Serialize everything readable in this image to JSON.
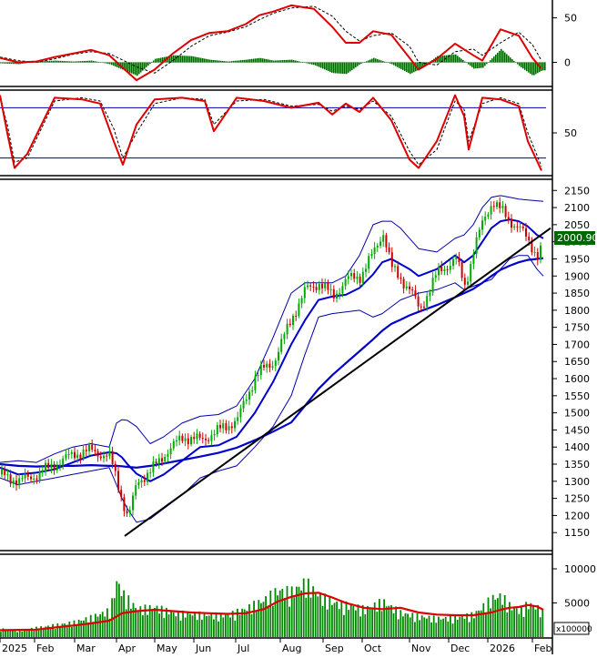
{
  "colors": {
    "background": "#ffffff",
    "frame": "#000000",
    "macd_line": "#dd0000",
    "macd_signal": "#000000",
    "macd_hist": "#006600",
    "stoch_k": "#dd0000",
    "stoch_d": "#000000",
    "stoch_ref": "#0000aa",
    "bollinger": "#0000aa",
    "ma_blue": "#0000cc",
    "trendline": "#000000",
    "candle_up": "#00aa00",
    "candle_down": "#cc0000",
    "volume_bar": "#008800",
    "volume_ma": "#dd0000",
    "price_tag_bg": "#006600",
    "price_tag_fg": "#ffffff"
  },
  "chart_data": [
    {
      "type": "line",
      "panel": "macd",
      "yticks": [
        50,
        0
      ],
      "ylim": [
        -25,
        68
      ],
      "x": [
        0,
        20,
        40,
        60,
        80,
        100,
        120,
        150,
        170,
        190,
        210,
        230,
        250,
        270,
        285,
        300,
        320,
        345,
        365,
        380,
        395,
        410,
        430,
        450,
        460,
        480,
        500,
        520,
        530,
        550,
        570,
        585,
        595
      ],
      "series": [
        {
          "values": [
            5,
            0,
            1,
            6,
            10,
            14,
            8,
            -20,
            -8,
            10,
            25,
            33,
            35,
            43,
            53,
            57,
            64,
            60,
            40,
            22,
            22,
            35,
            31,
            5,
            -8,
            4,
            21,
            8,
            2,
            37,
            30,
            5,
            -7
          ]
        },
        {
          "values": [
            6,
            2,
            0,
            4,
            9,
            12,
            10,
            -5,
            -12,
            2,
            18,
            30,
            34,
            40,
            48,
            55,
            61,
            63,
            52,
            35,
            24,
            30,
            33,
            18,
            0,
            -3,
            12,
            15,
            8,
            22,
            34,
            20,
            2
          ]
        }
      ],
      "histogram": [
        -1,
        -2,
        1,
        2,
        1,
        2,
        -2,
        -15,
        4,
        8,
        7,
        3,
        1,
        3,
        5,
        2,
        3,
        -3,
        -12,
        -13,
        -2,
        5,
        -2,
        -13,
        -8,
        7,
        9,
        -7,
        -6,
        15,
        -4,
        -15,
        -9
      ]
    },
    {
      "type": "line",
      "panel": "stochastic",
      "yticks": [
        50
      ],
      "ylim": [
        0,
        100
      ],
      "reference_lines": [
        80,
        20
      ],
      "x": [
        0,
        8,
        16,
        30,
        60,
        90,
        110,
        125,
        135,
        150,
        170,
        200,
        225,
        235,
        260,
        290,
        320,
        350,
        365,
        380,
        395,
        410,
        430,
        450,
        460,
        480,
        500,
        510,
        515,
        530,
        550,
        570,
        580,
        595
      ],
      "series": [
        {
          "values": [
            95,
            50,
            8,
            25,
            92,
            90,
            85,
            40,
            12,
            60,
            90,
            92,
            88,
            52,
            92,
            88,
            80,
            86,
            72,
            85,
            75,
            92,
            65,
            18,
            8,
            40,
            95,
            70,
            30,
            92,
            90,
            82,
            40,
            5
          ]
        },
        {
          "values": [
            92,
            60,
            15,
            20,
            88,
            92,
            88,
            55,
            20,
            50,
            85,
            92,
            90,
            60,
            88,
            90,
            82,
            84,
            76,
            82,
            78,
            88,
            70,
            28,
            12,
            30,
            88,
            78,
            40,
            85,
            92,
            85,
            50,
            10
          ]
        }
      ]
    },
    {
      "type": "candlestick",
      "panel": "price",
      "yticks": [
        2150,
        2100,
        2050,
        2000,
        1950,
        1900,
        1850,
        1800,
        1750,
        1700,
        1650,
        1600,
        1550,
        1500,
        1450,
        1400,
        1350,
        1300,
        1250,
        1200,
        1150
      ],
      "ylim": [
        1100,
        2180
      ],
      "last_price_label": "2000.90",
      "x": [
        0,
        20,
        40,
        60,
        80,
        100,
        120,
        128,
        134,
        140,
        150,
        165,
        180,
        200,
        220,
        240,
        260,
        280,
        300,
        320,
        335,
        350,
        365,
        380,
        395,
        410,
        420,
        430,
        440,
        450,
        460,
        480,
        500,
        510,
        520,
        530,
        540,
        550,
        560,
        570,
        580,
        590,
        597
      ],
      "close": [
        1320,
        1300,
        1320,
        1350,
        1380,
        1390,
        1370,
        1300,
        1240,
        1190,
        1300,
        1330,
        1380,
        1430,
        1420,
        1450,
        1480,
        1610,
        1650,
        1780,
        1860,
        1880,
        1840,
        1890,
        1900,
        1970,
        2030,
        1920,
        1890,
        1860,
        1800,
        1910,
        1950,
        1870,
        1980,
        2060,
        2120,
        2090,
        2060,
        2040,
        2000,
        1960,
        2001
      ],
      "ma_blue": [
        1350,
        1345,
        1343,
        1345,
        1345,
        1347,
        1345,
        1345,
        1344,
        1342,
        1340,
        1345,
        1352,
        1362,
        1372,
        1383,
        1398,
        1420,
        1445,
        1472,
        1520,
        1570,
        1610,
        1645,
        1680,
        1715,
        1740,
        1760,
        1772,
        1785,
        1795,
        1815,
        1838,
        1850,
        1862,
        1880,
        1900,
        1918,
        1930,
        1940,
        1947,
        1950,
        1952
      ],
      "bb_mid": [
        1340,
        1320,
        1325,
        1335,
        1355,
        1375,
        1385,
        1382,
        1370,
        1350,
        1322,
        1300,
        1320,
        1360,
        1400,
        1405,
        1430,
        1500,
        1590,
        1700,
        1770,
        1830,
        1840,
        1845,
        1865,
        1905,
        1940,
        1950,
        1935,
        1920,
        1900,
        1920,
        1960,
        1940,
        1960,
        2000,
        2040,
        2060,
        2065,
        2060,
        2045,
        2020,
        2010
      ],
      "bb_upper": [
        1355,
        1360,
        1355,
        1380,
        1400,
        1410,
        1400,
        1470,
        1480,
        1478,
        1460,
        1410,
        1430,
        1470,
        1490,
        1495,
        1520,
        1600,
        1720,
        1850,
        1880,
        1880,
        1880,
        1900,
        1960,
        2050,
        2060,
        2060,
        2040,
        2010,
        1980,
        1970,
        2010,
        2020,
        2050,
        2100,
        2130,
        2135,
        2130,
        2125,
        2122,
        2120,
        2118
      ],
      "bb_lower": [
        1310,
        1290,
        1300,
        1310,
        1320,
        1330,
        1340,
        1290,
        1250,
        1220,
        1180,
        1190,
        1220,
        1260,
        1310,
        1330,
        1345,
        1400,
        1460,
        1550,
        1670,
        1780,
        1790,
        1795,
        1800,
        1780,
        1790,
        1810,
        1830,
        1840,
        1850,
        1860,
        1880,
        1860,
        1870,
        1880,
        1890,
        1920,
        1950,
        1960,
        1960,
        1920,
        1900
      ],
      "trendline": [
        [
          137,
          1140
        ],
        [
          605,
          2040
        ]
      ]
    },
    {
      "type": "bar",
      "panel": "volume",
      "yticks": [
        10000,
        5000
      ],
      "ylim": [
        0,
        12000
      ],
      "unit_label": "x100000",
      "x": [
        0,
        20,
        40,
        60,
        80,
        100,
        120,
        128,
        134,
        150,
        170,
        190,
        210,
        230,
        250,
        270,
        290,
        305,
        320,
        335,
        350,
        365,
        380,
        400,
        420,
        440,
        460,
        480,
        500,
        520,
        540,
        550,
        560,
        570,
        580,
        590,
        597
      ],
      "values": [
        1200,
        1000,
        1400,
        1800,
        2200,
        3000,
        4000,
        8500,
        6500,
        4200,
        4500,
        3600,
        3500,
        3300,
        3300,
        4300,
        5600,
        7000,
        6800,
        8200,
        6200,
        5200,
        4800,
        4200,
        5300,
        3600,
        3100,
        2800,
        2900,
        3400,
        5800,
        6200,
        4600,
        4000,
        5000,
        4400,
        3500
      ],
      "ma": [
        1000,
        1050,
        1100,
        1400,
        1700,
        2000,
        2400,
        3000,
        3500,
        3800,
        4000,
        3800,
        3600,
        3500,
        3400,
        3500,
        4100,
        5200,
        5900,
        6400,
        6500,
        5800,
        5000,
        4300,
        4100,
        4300,
        3600,
        3300,
        3200,
        3200,
        3600,
        4000,
        4300,
        4400,
        4700,
        4500,
        4000
      ]
    }
  ],
  "xaxis": {
    "labels": [
      "2025",
      "Feb",
      "Mar",
      "Apr",
      "May",
      "Jun",
      "Jul",
      "Aug",
      "Sep",
      "Oct",
      "Nov",
      "Dec",
      "2026",
      "Feb"
    ],
    "positions": [
      0,
      38,
      82,
      128,
      170,
      213,
      259,
      308,
      355,
      398,
      450,
      493,
      536,
      585
    ]
  }
}
